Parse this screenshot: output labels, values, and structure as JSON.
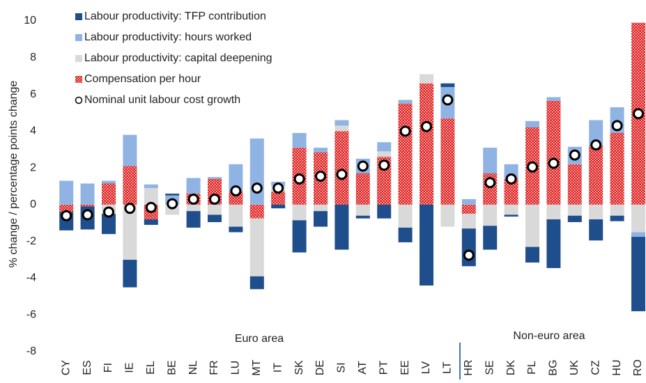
{
  "chart_data": {
    "type": "bar",
    "stacked": true,
    "y_label": "% change / percentage points change",
    "categories": [
      "CY",
      "ES",
      "FI",
      "IE",
      "EL",
      "BE",
      "NL",
      "FR",
      "LU",
      "MT",
      "IT",
      "SK",
      "DE",
      "SI",
      "AT",
      "PT",
      "EE",
      "LV",
      "LT",
      "HR",
      "SE",
      "DK",
      "PL",
      "BG",
      "UK",
      "CZ",
      "HU",
      "RO"
    ],
    "series": [
      {
        "name": "Labour productivity: TFP contribution",
        "color": "#1f4e8c",
        "values": [
          -1.0,
          -1.25,
          -1.1,
          -1.5,
          -0.3,
          0.1,
          -0.9,
          -0.4,
          -0.3,
          -0.7,
          -0.2,
          -1.75,
          -0.85,
          -2.45,
          -0.15,
          -0.75,
          -0.8,
          -4.4,
          0.2,
          -2.05,
          -1.3,
          -0.1,
          -0.85,
          -2.65,
          -0.35,
          -1.15,
          -0.3,
          -4.05
        ]
      },
      {
        "name": "Labour productivity: hours worked",
        "color": "#8fb4e3",
        "values": [
          1.3,
          1.15,
          0.15,
          1.7,
          0.2,
          0.5,
          0.85,
          0.1,
          1.5,
          3.6,
          0.25,
          0.8,
          0.25,
          0.3,
          0.8,
          0.5,
          0.2,
          0,
          1.7,
          0.3,
          1.4,
          0.8,
          0.35,
          0.2,
          0.95,
          1.4,
          1.4,
          -0.25
        ]
      },
      {
        "name": "Labour productivity: capital deepening",
        "color": "#d9d9d9",
        "values": [
          0,
          0,
          -0.5,
          -3.0,
          0.9,
          -0.55,
          -0.35,
          -0.55,
          -1.2,
          -3.15,
          0.3,
          -0.85,
          -0.35,
          0.3,
          -0.6,
          0.3,
          -1.25,
          0.5,
          -1.2,
          -0.8,
          -1.15,
          -0.55,
          -2.3,
          -0.8,
          -0.6,
          -0.8,
          -0.6,
          -1.5
        ]
      },
      {
        "name": "Compensation per hour",
        "color": "#e02020",
        "values": [
          -0.4,
          -0.1,
          1.15,
          2.1,
          -0.8,
          0,
          0.6,
          1.4,
          0.7,
          -0.75,
          0.7,
          3.1,
          2.85,
          4.0,
          1.7,
          2.6,
          5.5,
          6.6,
          4.7,
          -0.5,
          1.7,
          1.4,
          4.2,
          5.65,
          2.2,
          3.2,
          3.9,
          9.9
        ]
      }
    ],
    "markers": {
      "name": "Nominal unit labour cost growth",
      "values": [
        -0.6,
        -0.55,
        -0.4,
        -0.2,
        -0.15,
        0.05,
        0.3,
        0.3,
        0.75,
        0.9,
        0.9,
        1.4,
        1.55,
        1.65,
        2.1,
        2.15,
        4.0,
        4.25,
        5.7,
        -2.75,
        1.2,
        1.4,
        2.05,
        2.25,
        2.7,
        3.25,
        4.3,
        4.95
      ]
    },
    "annotations": [
      "Euro area",
      "Non-euro area"
    ],
    "ylim": [
      -8,
      10
    ],
    "yticks": [
      -8,
      -6,
      -4,
      -2,
      0,
      2,
      4,
      6,
      8,
      10
    ],
    "legend": "top-left"
  }
}
